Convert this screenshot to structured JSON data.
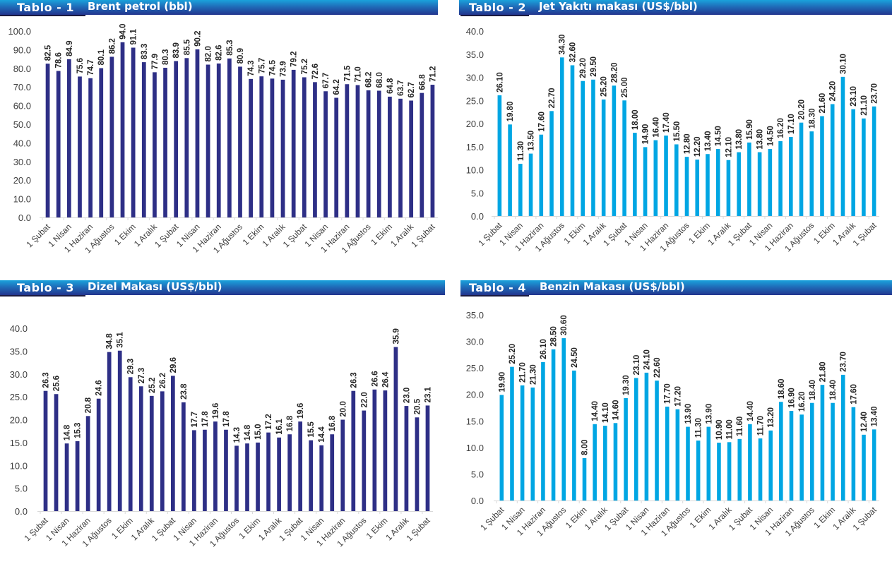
{
  "chart_data": [
    {
      "id": "chart1",
      "type": "bar",
      "tab_label": "Tablo - 1",
      "title": "Brent petrol (bbl)",
      "xlabel": "",
      "ylabel": "",
      "ylim": [
        0,
        100
      ],
      "yticks": [
        "0.0",
        "10.0",
        "20.0",
        "30.0",
        "40.0",
        "50.0",
        "60.0",
        "70.0",
        "80.0",
        "90.0",
        "100.0"
      ],
      "ystep": 10,
      "color": "#2e2f86",
      "value_format": 1,
      "grid": false,
      "x_labels": [
        "1 Şubat",
        "1 Nisan",
        "1 Haziran",
        "1 Ağustos",
        "1 Ekim",
        "1 Aralık",
        "1 Şubat",
        "1 Nisan",
        "1 Haziran",
        "1 Ağustos",
        "1 Ekim",
        "1 Aralık",
        "1 Şubat",
        "1 Nisan",
        "1 Haziran",
        "1 Ağustos",
        "1 Ekim",
        "1 Aralık",
        "1 Şubat"
      ],
      "values": [
        82.5,
        78.6,
        84.9,
        75.6,
        74.7,
        80.1,
        86.2,
        94.0,
        91.1,
        83.3,
        77.9,
        80.3,
        83.9,
        85.5,
        90.2,
        82.0,
        82.6,
        85.3,
        80.9,
        74.3,
        75.7,
        74.5,
        73.9,
        79.2,
        75.2,
        72.6,
        67.7,
        64.2,
        71.5,
        71.0,
        68.2,
        68.0,
        64.8,
        63.7,
        62.7,
        66.8,
        71.2
      ]
    },
    {
      "id": "chart2",
      "type": "bar",
      "tab_label": "Tablo - 2",
      "title": "Jet Yakıtı makası (US$/bbl)",
      "xlabel": "",
      "ylabel": "",
      "ylim": [
        0,
        40
      ],
      "yticks": [
        "0.0",
        "5.0",
        "10.0",
        "15.0",
        "20.0",
        "25.0",
        "30.0",
        "35.0",
        "40.0"
      ],
      "ystep": 5,
      "color": "#00a6e3",
      "value_format": 2,
      "grid": false,
      "x_labels": [
        "1 Şubat",
        "1 Nisan",
        "1 Haziran",
        "1 Ağustos",
        "1 Ekim",
        "1 Aralık",
        "1 Şubat",
        "1 Nisan",
        "1 Haziran",
        "1 Ağustos",
        "1 Ekim",
        "1 Aralık",
        "1 Şubat",
        "1 Nisan",
        "1 Haziran",
        "1 Ağustos",
        "1 Ekim",
        "1 Aralık",
        "1 Şubat"
      ],
      "values": [
        26.1,
        19.8,
        11.3,
        13.5,
        17.6,
        22.7,
        34.3,
        32.6,
        29.2,
        29.5,
        25.2,
        28.2,
        25.0,
        18.0,
        14.9,
        16.4,
        17.4,
        15.5,
        12.8,
        12.2,
        13.4,
        14.5,
        12.1,
        13.8,
        15.9,
        13.8,
        14.5,
        16.2,
        17.1,
        20.2,
        18.3,
        21.6,
        24.2,
        30.1,
        23.1,
        21.1,
        23.7
      ]
    },
    {
      "id": "chart3",
      "type": "bar",
      "tab_label": "Tablo - 3",
      "title": "Dizel Makası (US$/bbl)",
      "xlabel": "",
      "ylabel": "",
      "ylim": [
        0,
        40
      ],
      "yticks": [
        "0.0",
        "5.0",
        "10.0",
        "15.0",
        "20.0",
        "25.0",
        "30.0",
        "35.0",
        "40.0"
      ],
      "ystep": 5,
      "color": "#2e2f86",
      "value_format": 1,
      "grid": false,
      "x_labels": [
        "1 Şubat",
        "1 Nisan",
        "1 Haziran",
        "1 Ağustos",
        "1 Ekim",
        "1 Aralık",
        "1 Şubat",
        "1 Nisan",
        "1 Haziran",
        "1 Ağustos",
        "1 Ekim",
        "1 Aralık",
        "1 Şubat",
        "1 Nisan",
        "1 Haziran",
        "1 Ağustos",
        "1 Ekim",
        "1 Aralık",
        "1 Şubat"
      ],
      "values": [
        26.3,
        25.6,
        14.8,
        15.3,
        20.8,
        24.6,
        34.8,
        35.1,
        29.3,
        27.3,
        25.2,
        26.2,
        29.6,
        23.8,
        17.7,
        17.8,
        19.6,
        17.8,
        14.3,
        14.8,
        15.0,
        17.2,
        16.1,
        16.8,
        19.6,
        15.5,
        14.4,
        16.8,
        20.0,
        26.3,
        22.0,
        26.6,
        26.4,
        35.9,
        23.0,
        20.5,
        23.1
      ]
    },
    {
      "id": "chart4",
      "type": "bar",
      "tab_label": "Tablo - 4",
      "title": "Benzin Makası (US$/bbl)",
      "xlabel": "",
      "ylabel": "",
      "ylim": [
        0,
        35
      ],
      "yticks": [
        "0.0",
        "5.0",
        "10.0",
        "15.0",
        "20.0",
        "25.0",
        "30.0",
        "35.0"
      ],
      "ystep": 5,
      "color": "#00a6e3",
      "value_format": 2,
      "grid": false,
      "x_labels": [
        "1 Şubat",
        "1 Nisan",
        "1 Haziran",
        "1 Ağustos",
        "1 Ekim",
        "1 Aralık",
        "1 Şubat",
        "1 Nisan",
        "1 Haziran",
        "1 Ağustos",
        "1 Ekim",
        "1 Aralık",
        "1 Şubat",
        "1 Nisan",
        "1 Haziran",
        "1 Ağustos",
        "1 Ekim",
        "1 Aralık",
        "1 Şubat"
      ],
      "values": [
        19.9,
        25.2,
        21.7,
        21.3,
        26.1,
        28.5,
        30.6,
        24.5,
        8.0,
        14.4,
        14.1,
        14.6,
        19.3,
        23.1,
        24.1,
        22.6,
        17.7,
        17.2,
        13.9,
        11.3,
        13.9,
        10.9,
        11.0,
        11.6,
        14.4,
        11.7,
        13.2,
        18.6,
        16.9,
        16.2,
        18.4,
        21.8,
        18.4,
        23.7,
        17.6,
        12.4,
        13.4
      ]
    }
  ]
}
